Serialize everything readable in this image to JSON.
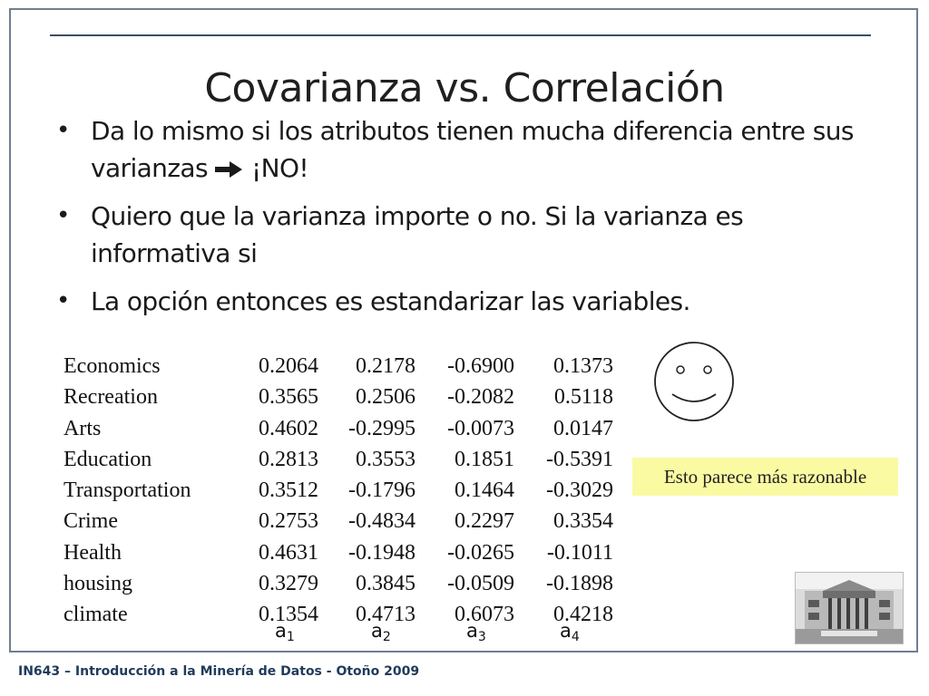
{
  "title": "Covarianza vs. Correlación",
  "bullets": [
    {
      "text_before": "Da lo mismo si los atributos tienen mucha diferencia entre sus varianzas",
      "icon": "arrow-right-icon",
      "text_after": "¡NO!"
    },
    {
      "text": "Quiero que la varianza importe o no. Si la varianza es informativa si"
    },
    {
      "text": "La opción entonces es estandarizar las variables."
    }
  ],
  "table": {
    "rows": [
      {
        "name": "Economics",
        "values": [
          "0.2064",
          "0.2178",
          "-0.6900",
          "0.1373"
        ]
      },
      {
        "name": "Recreation",
        "values": [
          "0.3565",
          "0.2506",
          "-0.2082",
          "0.5118"
        ]
      },
      {
        "name": "Arts",
        "values": [
          "0.4602",
          "-0.2995",
          "-0.0073",
          "0.0147"
        ]
      },
      {
        "name": "Education",
        "values": [
          "0.2813",
          "0.3553",
          "0.1851",
          "-0.5391"
        ]
      },
      {
        "name": "Transportation",
        "values": [
          "0.3512",
          "-0.1796",
          "0.1464",
          "-0.3029"
        ]
      },
      {
        "name": "Crime",
        "values": [
          "0.2753",
          "-0.4834",
          "0.2297",
          "0.3354"
        ]
      },
      {
        "name": "Health",
        "values": [
          "0.4631",
          "-0.1948",
          "-0.0265",
          "-0.1011"
        ]
      },
      {
        "name": "housing",
        "values": [
          "0.3279",
          "0.3845",
          "-0.0509",
          "-0.1898"
        ]
      },
      {
        "name": "climate",
        "values": [
          "0.1354",
          "0.4713",
          "0.6073",
          "0.4218"
        ]
      }
    ],
    "column_labels": [
      {
        "base": "a",
        "sub": "1"
      },
      {
        "base": "a",
        "sub": "2"
      },
      {
        "base": "a",
        "sub": "3"
      },
      {
        "base": "a",
        "sub": "4"
      }
    ]
  },
  "note": "Esto parece más razonable",
  "smiley_icon": "smiley-face-icon",
  "photo": "building-photo",
  "footer": "IN643 – Introducción a la Minería de Datos - Otoño 2009",
  "colors": {
    "title_rule": "#3b4f66",
    "frame": "#6f7f8f",
    "note_background": "#fafaa3",
    "footer_text": "#1f3b5a"
  }
}
